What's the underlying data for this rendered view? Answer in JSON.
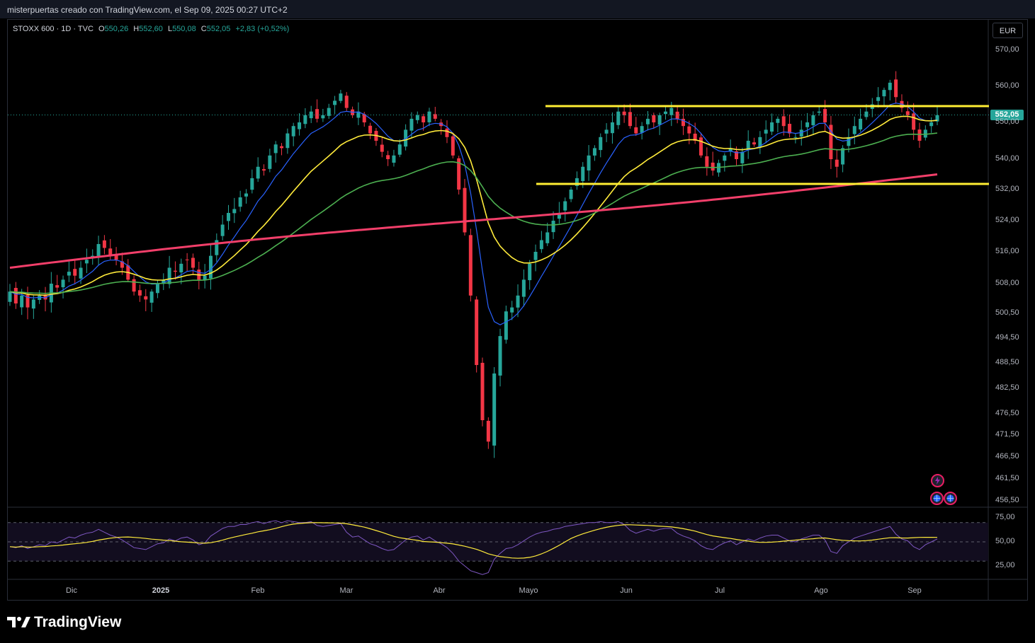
{
  "header": {
    "text": "misterpuertas creado con TradingView.com, el Sep 09, 2025 00:27 UTC+2"
  },
  "legend": {
    "symbol": "STOXX 600 · 1D · TVC",
    "open_label": "O",
    "open": "550,26",
    "high_label": "H",
    "high": "552,60",
    "low_label": "L",
    "low": "550,08",
    "close_label": "C",
    "close": "552,05",
    "change": "+2,83 (+0,52%)"
  },
  "currency": "EUR",
  "last_price": "552,05",
  "brand": {
    "name": "TradingView"
  },
  "icons": {
    "logo": "tradingview-logo-icon",
    "events": [
      "lightning-event-icon",
      "globe-event-icon",
      "globe-event-icon"
    ]
  },
  "colors": {
    "up": "#26a69a",
    "down": "#f23645",
    "ema_fast": "#2962ff",
    "ema_mid": "#ffeb3b",
    "ema_slow": "#4caf50",
    "ema_200": "#f23f6a",
    "levels": "#ffee33",
    "rsi": "#7e57c2",
    "rsi_ma": "#ffeb3b"
  },
  "chart_data": {
    "type": "candlestick",
    "price_axis": [
      "570,00",
      "560,00",
      "550,00",
      "540,00",
      "532,00",
      "524,00",
      "516,00",
      "508,00",
      "500,50",
      "494,50",
      "488,50",
      "482,50",
      "476,50",
      "471,50",
      "466,50",
      "461,50",
      "456,50"
    ],
    "rsi_axis": [
      "75,00",
      "50,00",
      "25,00"
    ],
    "time_axis": [
      {
        "label": "Dic",
        "bold": false
      },
      {
        "label": "2025",
        "bold": true
      },
      {
        "label": "Feb",
        "bold": false
      },
      {
        "label": "Mar",
        "bold": false
      },
      {
        "label": "Abr",
        "bold": false
      },
      {
        "label": "Mayo",
        "bold": false
      },
      {
        "label": "Jun",
        "bold": false
      },
      {
        "label": "Jul",
        "bold": false
      },
      {
        "label": "Ago",
        "bold": false
      },
      {
        "label": "Sep",
        "bold": false
      }
    ],
    "resistance_level": 554.5,
    "support_level": 533.5,
    "closes": [
      506,
      503,
      505,
      502,
      504,
      505,
      504,
      508,
      507,
      509,
      511,
      510,
      512,
      514,
      515,
      518,
      517,
      515,
      514,
      512,
      509,
      506,
      505,
      504,
      506,
      508,
      509,
      512,
      511,
      513,
      514,
      512,
      509,
      510,
      515,
      519,
      523,
      526,
      527,
      530,
      531,
      535,
      538,
      537,
      541,
      544,
      543,
      547,
      549,
      550,
      552,
      553,
      551,
      552,
      554,
      556,
      558,
      554,
      552,
      553,
      550,
      547,
      545,
      542,
      540,
      541,
      544,
      548,
      551,
      552,
      550,
      553,
      551,
      549,
      546,
      541,
      532,
      521,
      505,
      488,
      475,
      470,
      486,
      495,
      501,
      502,
      505,
      509,
      513,
      516,
      519,
      521,
      524,
      526,
      529,
      532,
      535,
      538,
      541,
      543,
      546,
      548,
      550,
      553,
      552,
      549,
      547,
      549,
      551,
      550,
      552,
      553,
      554,
      551,
      549,
      547,
      545,
      541,
      538,
      537,
      539,
      541,
      543,
      540,
      542,
      545,
      544,
      546,
      548,
      550,
      551,
      549,
      547,
      546,
      548,
      550,
      552,
      553,
      550,
      540,
      538,
      543,
      546,
      549,
      551,
      553,
      555,
      557,
      559,
      561,
      557,
      554,
      552,
      548,
      545,
      548,
      550,
      552
    ],
    "rsi": [
      45,
      44,
      46,
      43,
      45,
      47,
      46,
      50,
      49,
      52,
      55,
      54,
      57,
      59,
      60,
      63,
      60,
      57,
      55,
      52,
      48,
      44,
      43,
      42,
      45,
      48,
      49,
      53,
      51,
      54,
      55,
      52,
      47,
      49,
      56,
      60,
      64,
      66,
      66,
      68,
      68,
      70,
      71,
      69,
      71,
      72,
      70,
      72,
      71,
      70,
      70,
      71,
      67,
      66,
      67,
      68,
      69,
      60,
      55,
      56,
      52,
      48,
      46,
      43,
      41,
      42,
      47,
      52,
      55,
      56,
      52,
      55,
      51,
      48,
      44,
      38,
      30,
      25,
      20,
      18,
      16,
      18,
      32,
      38,
      43,
      44,
      47,
      51,
      55,
      58,
      60,
      61,
      63,
      64,
      66,
      67,
      68,
      69,
      70,
      70,
      71,
      70,
      70,
      71,
      68,
      62,
      59,
      61,
      63,
      61,
      63,
      64,
      64,
      59,
      56,
      54,
      51,
      46,
      43,
      42,
      46,
      49,
      51,
      47,
      50,
      53,
      51,
      54,
      56,
      57,
      57,
      54,
      51,
      50,
      53,
      55,
      57,
      57,
      52,
      40,
      38,
      46,
      50,
      54,
      56,
      58,
      60,
      62,
      64,
      66,
      58,
      53,
      51,
      45,
      42,
      47,
      50,
      53
    ]
  }
}
